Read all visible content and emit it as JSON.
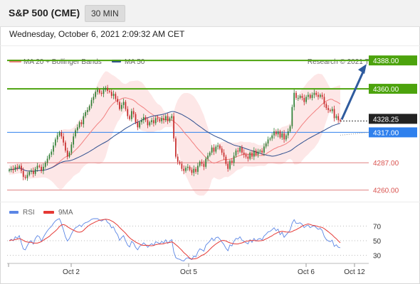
{
  "header": {
    "title": "S&P 500 (CME)",
    "interval": "30 MIN"
  },
  "timestamp": "Wednesday, October 6, 2021 2:09:32 AM CET",
  "legend": {
    "bollinger": "MA 20 + Bollinger Bands",
    "ma50": "MA 50",
    "credit": "Research © 2021 Trading Central"
  },
  "rsi_legend": {
    "rsi": "RSI",
    "ma": "9MA"
  },
  "colors": {
    "up": "#2e7d32",
    "down": "#c62828",
    "ma20": "#f28080",
    "ma50": "#2f4f8f",
    "band": "#fde3e3",
    "resistance": "#4ca30d",
    "support_line": "#e08080",
    "pivot": "#2f80ed",
    "current": "#222222",
    "rsi": "#5b86e5",
    "rsi_ma": "#e53935",
    "arrow": "#2f5b9e"
  },
  "chart_data": [
    {
      "type": "candlestick",
      "title": "S&P 500 (CME)",
      "x_ticks": [
        "Oct 2",
        "Oct 5",
        "Oct 6",
        "Oct 12"
      ],
      "ylim": [
        4250,
        4400
      ],
      "current_price": "4328.25",
      "levels": [
        {
          "value": 4388.0,
          "label": "4388.00",
          "kind": "resistance"
        },
        {
          "value": 4360.0,
          "label": "4360.00",
          "kind": "resistance"
        },
        {
          "value": 4317.0,
          "label": "4317.00",
          "kind": "pivot"
        },
        {
          "value": 4287.0,
          "label": "4287.00",
          "kind": "support"
        },
        {
          "value": 4260.0,
          "label": "4260.00",
          "kind": "support"
        }
      ],
      "close": [
        4280,
        4281,
        4280,
        4283,
        4282,
        4284,
        4279,
        4273,
        4272,
        4275,
        4278,
        4279,
        4276,
        4281,
        4284,
        4283,
        4279,
        4283,
        4287,
        4291,
        4295,
        4298,
        4304,
        4310,
        4314,
        4317,
        4313,
        4307,
        4299,
        4293,
        4297,
        4305,
        4313,
        4319,
        4322,
        4327,
        4325,
        4333,
        4337,
        4339,
        4343,
        4349,
        4352,
        4357,
        4359,
        4356,
        4355,
        4359,
        4361,
        4358,
        4357,
        4353,
        4355,
        4350,
        4347,
        4340,
        4344,
        4347,
        4340,
        4333,
        4330,
        4338,
        4335,
        4327,
        4322,
        4327,
        4329,
        4332,
        4329,
        4324,
        4327,
        4329,
        4326,
        4331,
        4330,
        4328,
        4331,
        4329,
        4333,
        4328,
        4331,
        4333,
        4311,
        4293,
        4288,
        4286,
        4281,
        4279,
        4282,
        4283,
        4280,
        4277,
        4281,
        4278,
        4284,
        4288,
        4286,
        4283,
        4291,
        4294,
        4297,
        4302,
        4298,
        4303,
        4304,
        4301,
        4297,
        4293,
        4286,
        4281,
        4289,
        4287,
        4294,
        4299,
        4298,
        4302,
        4297,
        4295,
        4293,
        4291,
        4297,
        4293,
        4299,
        4295,
        4298,
        4299,
        4297,
        4303,
        4306,
        4310,
        4311,
        4314,
        4318,
        4315,
        4318,
        4312,
        4316,
        4310,
        4314,
        4318,
        4323,
        4342,
        4356,
        4351,
        4351,
        4353,
        4351,
        4347,
        4352,
        4354,
        4351,
        4354,
        4356,
        4354,
        4352,
        4354,
        4352,
        4345,
        4341,
        4339,
        4338,
        4340,
        4331,
        4333,
        4329,
        4328.25
      ],
      "rsi": {
        "ylim": [
          20,
          80
        ],
        "ticks": [
          70,
          50,
          30
        ]
      }
    }
  ]
}
